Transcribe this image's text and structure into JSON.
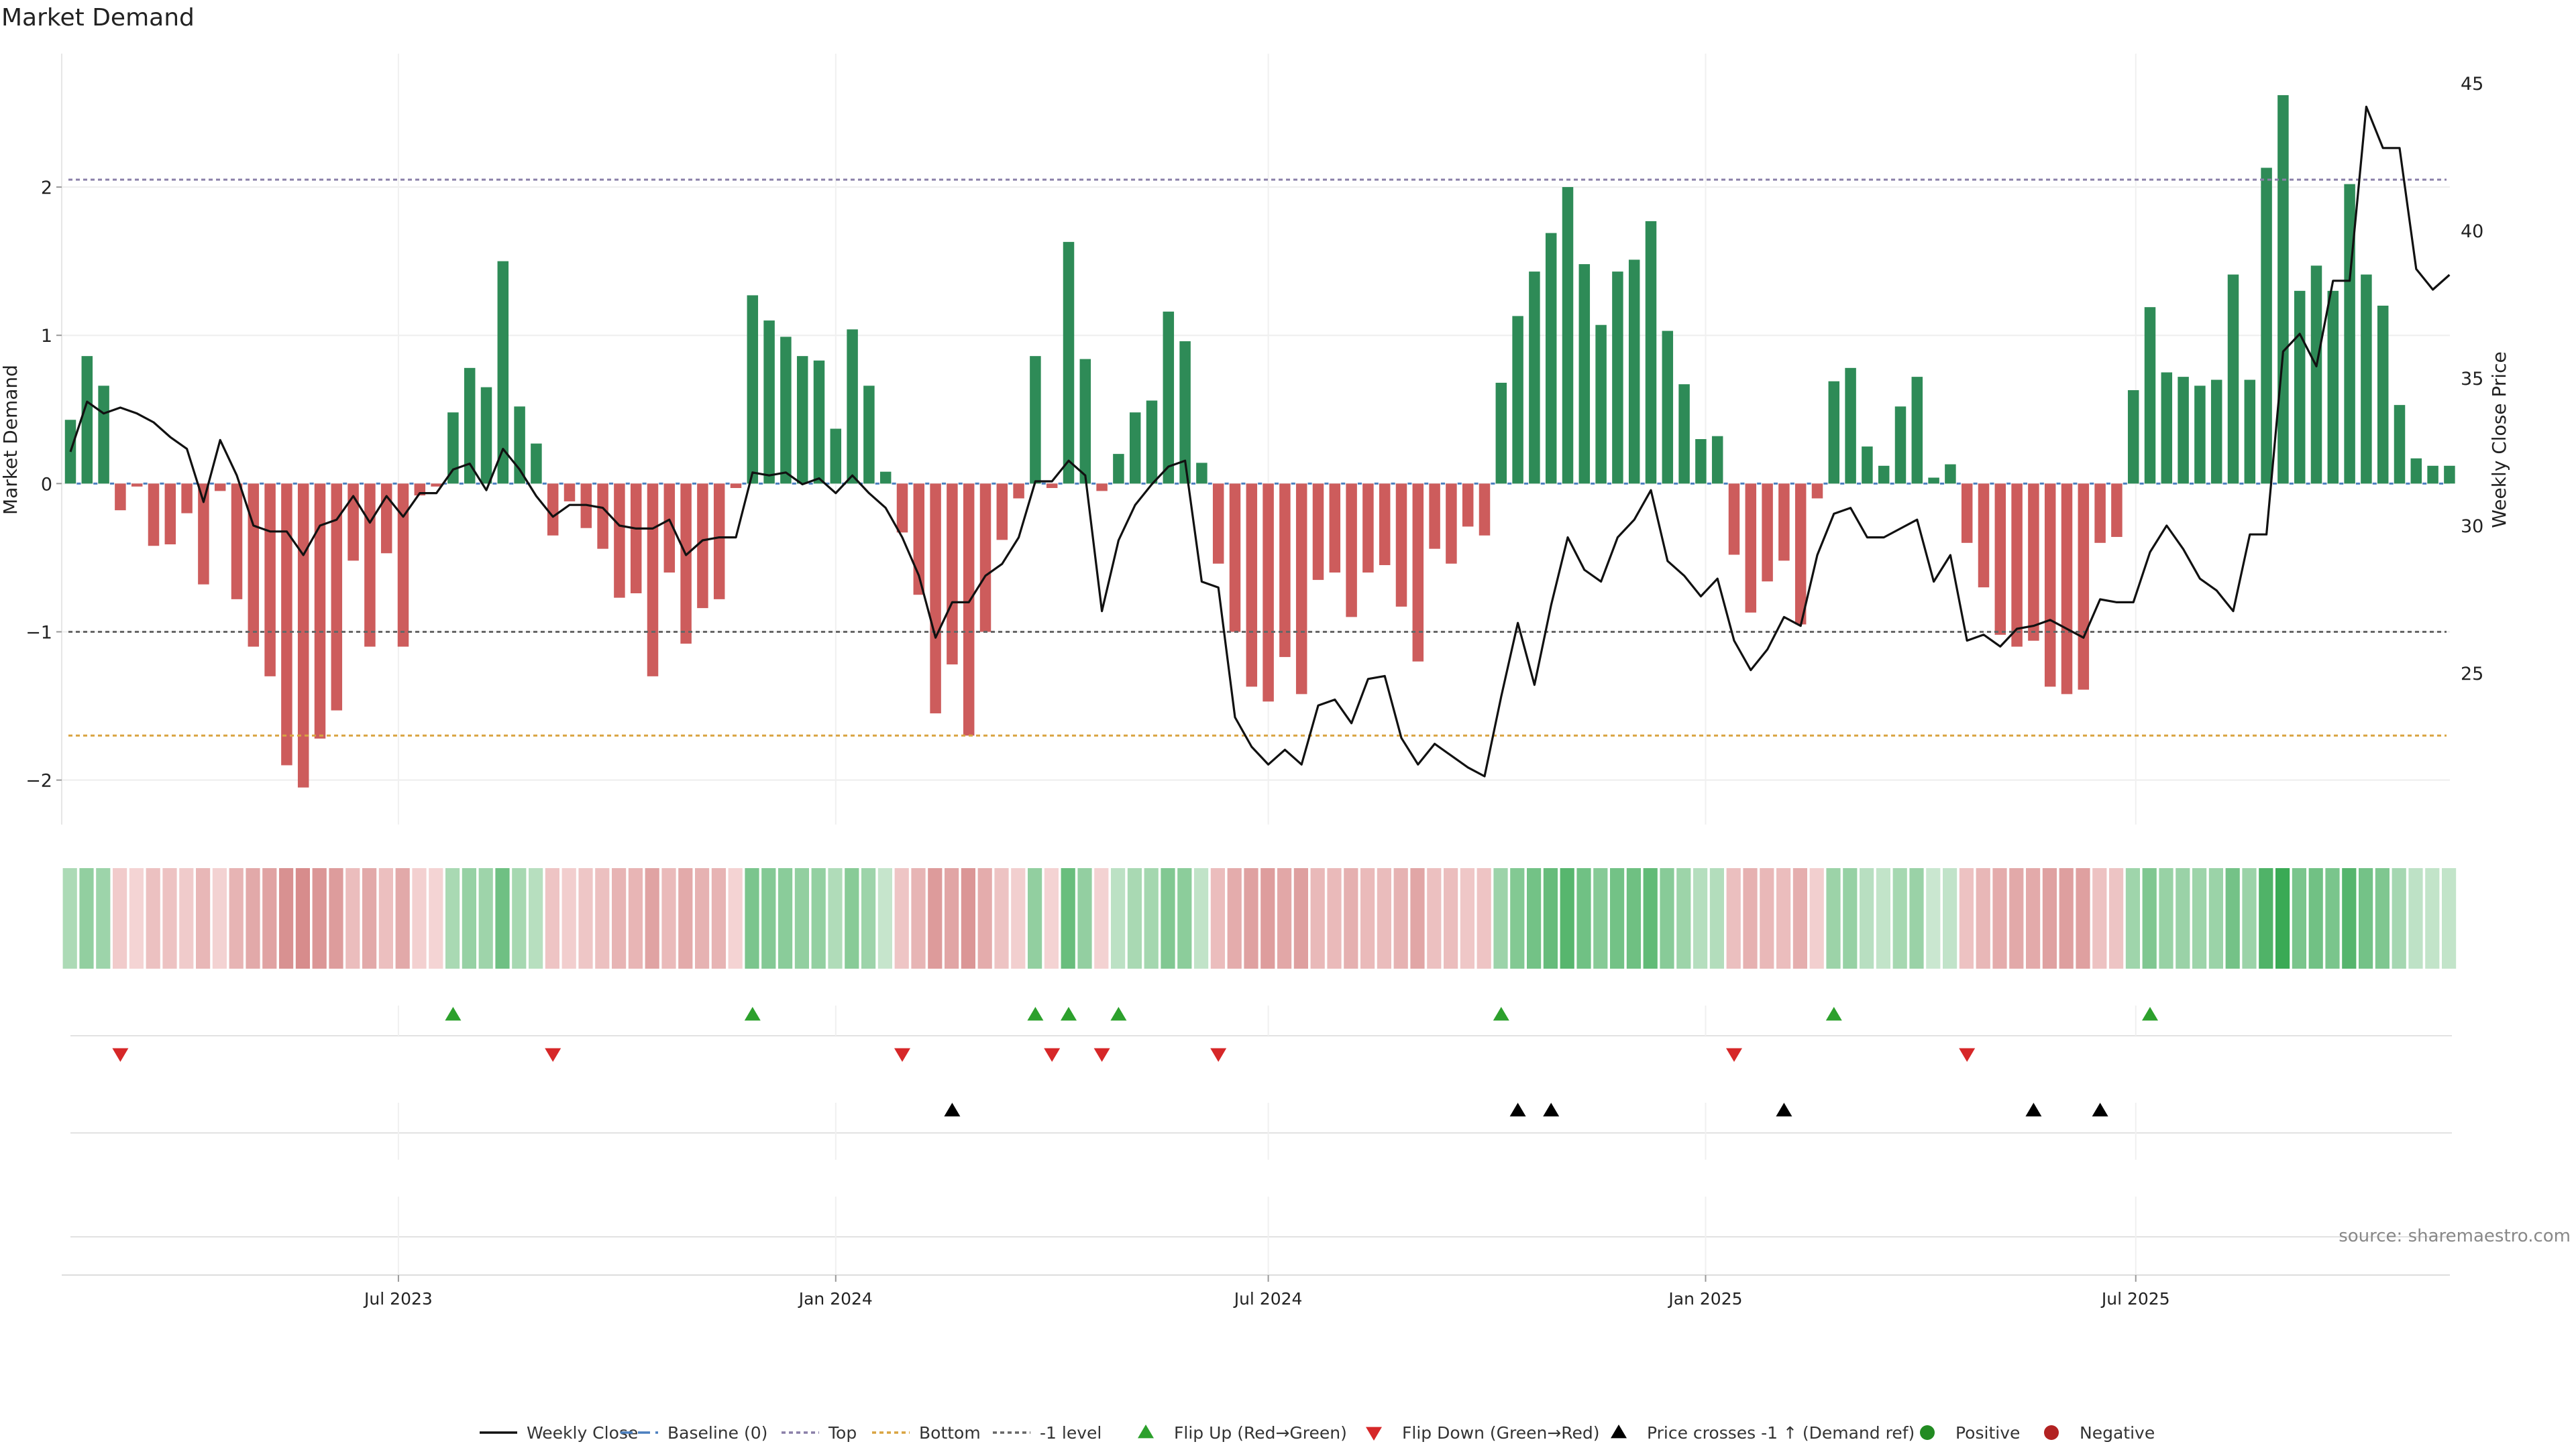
{
  "chart_data": {
    "type": "bar",
    "title": "Market Demand",
    "ylabel": "Market Demand",
    "y2label": "Weekly Close Price",
    "ylim": [
      -2.3,
      2.9
    ],
    "y2lim": [
      21,
      46
    ],
    "yticks": [
      -2,
      -1,
      0,
      1,
      2
    ],
    "y2ticks": [
      25,
      30,
      35,
      40,
      45
    ],
    "x_start": "2023-02-13",
    "x_end": "2025-10-20",
    "xtick_labels": [
      "Jul 2023",
      "Jan 2024",
      "Jul 2024",
      "Jan 2025",
      "Jul 2025"
    ],
    "xtick_dates": [
      "2023-07-01",
      "2024-01-01",
      "2024-07-01",
      "2025-01-01",
      "2025-07-01"
    ],
    "levels": {
      "top": 2.05,
      "bottom": -1.7,
      "minus_one": -1.0,
      "baseline": 0
    },
    "weeks": [
      {
        "d": 0.43,
        "p": 32.5
      },
      {
        "d": 0.86,
        "p": 34.2
      },
      {
        "d": 0.66,
        "p": 33.8
      },
      {
        "d": -0.18,
        "p": 34.0
      },
      {
        "d": -0.02,
        "p": 33.8
      },
      {
        "d": -0.42,
        "p": 33.5
      },
      {
        "d": -0.41,
        "p": 33.0
      },
      {
        "d": -0.2,
        "p": 32.6
      },
      {
        "d": -0.68,
        "p": 30.8
      },
      {
        "d": -0.05,
        "p": 32.9
      },
      {
        "d": -0.78,
        "p": 31.7
      },
      {
        "d": -1.1,
        "p": 30.0
      },
      {
        "d": -1.3,
        "p": 29.8
      },
      {
        "d": -1.9,
        "p": 29.8
      },
      {
        "d": -2.05,
        "p": 29.0
      },
      {
        "d": -1.72,
        "p": 30.0
      },
      {
        "d": -1.53,
        "p": 30.2
      },
      {
        "d": -0.52,
        "p": 31.0
      },
      {
        "d": -1.1,
        "p": 30.1
      },
      {
        "d": -0.47,
        "p": 31.0
      },
      {
        "d": -1.1,
        "p": 30.3
      },
      {
        "d": -0.08,
        "p": 31.1
      },
      {
        "d": -0.02,
        "p": 31.1
      },
      {
        "d": 0.48,
        "p": 31.9
      },
      {
        "d": 0.78,
        "p": 32.1
      },
      {
        "d": 0.65,
        "p": 31.2
      },
      {
        "d": 1.5,
        "p": 32.6
      },
      {
        "d": 0.52,
        "p": 31.9
      },
      {
        "d": 0.27,
        "p": 31.0
      },
      {
        "d": -0.35,
        "p": 30.3
      },
      {
        "d": -0.12,
        "p": 30.7
      },
      {
        "d": -0.3,
        "p": 30.7
      },
      {
        "d": -0.44,
        "p": 30.6
      },
      {
        "d": -0.77,
        "p": 30.0
      },
      {
        "d": -0.74,
        "p": 29.9
      },
      {
        "d": -1.3,
        "p": 29.9
      },
      {
        "d": -0.6,
        "p": 30.2
      },
      {
        "d": -1.08,
        "p": 29.0
      },
      {
        "d": -0.84,
        "p": 29.5
      },
      {
        "d": -0.78,
        "p": 29.6
      },
      {
        "d": -0.03,
        "p": 29.6
      },
      {
        "d": 1.27,
        "p": 31.8
      },
      {
        "d": 1.1,
        "p": 31.7
      },
      {
        "d": 0.99,
        "p": 31.8
      },
      {
        "d": 0.86,
        "p": 31.4
      },
      {
        "d": 0.83,
        "p": 31.6
      },
      {
        "d": 0.37,
        "p": 31.1
      },
      {
        "d": 1.04,
        "p": 31.7
      },
      {
        "d": 0.66,
        "p": 31.1
      },
      {
        "d": 0.08,
        "p": 30.6
      },
      {
        "d": -0.33,
        "p": 29.6
      },
      {
        "d": -0.75,
        "p": 28.3
      },
      {
        "d": -1.55,
        "p": 26.2
      },
      {
        "d": -1.22,
        "p": 27.4
      },
      {
        "d": -1.7,
        "p": 27.4
      },
      {
        "d": -1.0,
        "p": 28.3
      },
      {
        "d": -0.38,
        "p": 28.7
      },
      {
        "d": -0.1,
        "p": 29.6
      },
      {
        "d": 0.86,
        "p": 31.5
      },
      {
        "d": -0.03,
        "p": 31.5
      },
      {
        "d": 1.63,
        "p": 32.2
      },
      {
        "d": 0.84,
        "p": 31.7
      },
      {
        "d": -0.05,
        "p": 27.1
      },
      {
        "d": 0.2,
        "p": 29.5
      },
      {
        "d": 0.48,
        "p": 30.7
      },
      {
        "d": 0.56,
        "p": 31.4
      },
      {
        "d": 1.16,
        "p": 32.0
      },
      {
        "d": 0.96,
        "p": 32.2
      },
      {
        "d": 0.14,
        "p": 28.1
      },
      {
        "d": -0.54,
        "p": 27.9
      },
      {
        "d": -1.0,
        "p": 23.5
      },
      {
        "d": -1.37,
        "p": 22.5
      },
      {
        "d": -1.47,
        "p": 21.9
      },
      {
        "d": -1.17,
        "p": 22.4
      },
      {
        "d": -1.42,
        "p": 21.9
      },
      {
        "d": -0.65,
        "p": 23.9
      },
      {
        "d": -0.6,
        "p": 24.1
      },
      {
        "d": -0.9,
        "p": 23.3
      },
      {
        "d": -0.6,
        "p": 24.8
      },
      {
        "d": -0.55,
        "p": 24.9
      },
      {
        "d": -0.83,
        "p": 22.8
      },
      {
        "d": -1.2,
        "p": 21.9
      },
      {
        "d": -0.44,
        "p": 22.6
      },
      {
        "d": -0.54,
        "p": 22.2
      },
      {
        "d": -0.29,
        "p": 21.8
      },
      {
        "d": -0.35,
        "p": 21.5
      },
      {
        "d": 0.68,
        "p": 24.2
      },
      {
        "d": 1.13,
        "p": 26.7
      },
      {
        "d": 1.43,
        "p": 24.6
      },
      {
        "d": 1.69,
        "p": 27.3
      },
      {
        "d": 2.0,
        "p": 29.6
      },
      {
        "d": 1.48,
        "p": 28.5
      },
      {
        "d": 1.07,
        "p": 28.1
      },
      {
        "d": 1.43,
        "p": 29.6
      },
      {
        "d": 1.51,
        "p": 30.2
      },
      {
        "d": 1.77,
        "p": 31.2
      },
      {
        "d": 1.03,
        "p": 28.8
      },
      {
        "d": 0.67,
        "p": 28.3
      },
      {
        "d": 0.3,
        "p": 27.6
      },
      {
        "d": 0.32,
        "p": 28.2
      },
      {
        "d": -0.48,
        "p": 26.1
      },
      {
        "d": -0.87,
        "p": 25.1
      },
      {
        "d": -0.66,
        "p": 25.8
      },
      {
        "d": -0.52,
        "p": 26.9
      },
      {
        "d": -0.95,
        "p": 26.6
      },
      {
        "d": -0.1,
        "p": 29.0
      },
      {
        "d": 0.69,
        "p": 30.4
      },
      {
        "d": 0.78,
        "p": 30.6
      },
      {
        "d": 0.25,
        "p": 29.6
      },
      {
        "d": 0.12,
        "p": 29.6
      },
      {
        "d": 0.52,
        "p": 29.9
      },
      {
        "d": 0.72,
        "p": 30.2
      },
      {
        "d": 0.04,
        "p": 28.1
      },
      {
        "d": 0.13,
        "p": 29.0
      },
      {
        "d": -0.4,
        "p": 26.1
      },
      {
        "d": -0.7,
        "p": 26.3
      },
      {
        "d": -1.02,
        "p": 25.9
      },
      {
        "d": -1.1,
        "p": 26.5
      },
      {
        "d": -1.06,
        "p": 26.6
      },
      {
        "d": -1.37,
        "p": 26.8
      },
      {
        "d": -1.42,
        "p": 26.5
      },
      {
        "d": -1.39,
        "p": 26.2
      },
      {
        "d": -0.4,
        "p": 27.5
      },
      {
        "d": -0.36,
        "p": 27.4
      },
      {
        "d": 0.63,
        "p": 27.4
      },
      {
        "d": 1.19,
        "p": 29.1
      },
      {
        "d": 0.75,
        "p": 30.0
      },
      {
        "d": 0.72,
        "p": 29.2
      },
      {
        "d": 0.66,
        "p": 28.2
      },
      {
        "d": 0.7,
        "p": 27.8
      },
      {
        "d": 1.41,
        "p": 27.1
      },
      {
        "d": 0.7,
        "p": 29.7
      },
      {
        "d": 2.13,
        "p": 29.7
      },
      {
        "d": 2.62,
        "p": 35.9
      },
      {
        "d": 1.3,
        "p": 36.5
      },
      {
        "d": 1.47,
        "p": 35.4
      },
      {
        "d": 1.3,
        "p": 38.3
      },
      {
        "d": 2.02,
        "p": 38.3
      },
      {
        "d": 1.41,
        "p": 44.2
      },
      {
        "d": 1.2,
        "p": 42.8
      },
      {
        "d": 0.53,
        "p": 42.8
      },
      {
        "d": 0.17,
        "p": 38.7
      },
      {
        "d": 0.12,
        "p": 38.0
      },
      {
        "d": 0.12,
        "p": 38.5
      }
    ],
    "flip_up_weeks": [
      23,
      41,
      58,
      60,
      63,
      86,
      106,
      125
    ],
    "flip_down_weeks": [
      3,
      29,
      50,
      59,
      62,
      69,
      100,
      114
    ],
    "price_cross_weeks": [
      53,
      87,
      89,
      103,
      118,
      122
    ],
    "source": "source: sharemaestro.com",
    "legend": [
      "Weekly Close",
      "Baseline (0)",
      "Top",
      "Bottom",
      "-1 level",
      "Flip Up (Red→Green)",
      "Flip Down (Green→Red)",
      "Price crosses -1 ↑ (Demand ref)",
      "Positive",
      "Negative"
    ],
    "colors": {
      "positive": "#2e8b57",
      "negative": "#cd5c5c",
      "line": "#111111",
      "flip_up": "#2ca02c",
      "flip_down": "#d62728",
      "cross": "#000000",
      "top": "#8a7fa8",
      "bottom": "#d9a441",
      "minus_one": "#666666",
      "baseline": "#4a7fbf",
      "legend_positive": "#228b22",
      "legend_negative": "#b22222"
    }
  }
}
